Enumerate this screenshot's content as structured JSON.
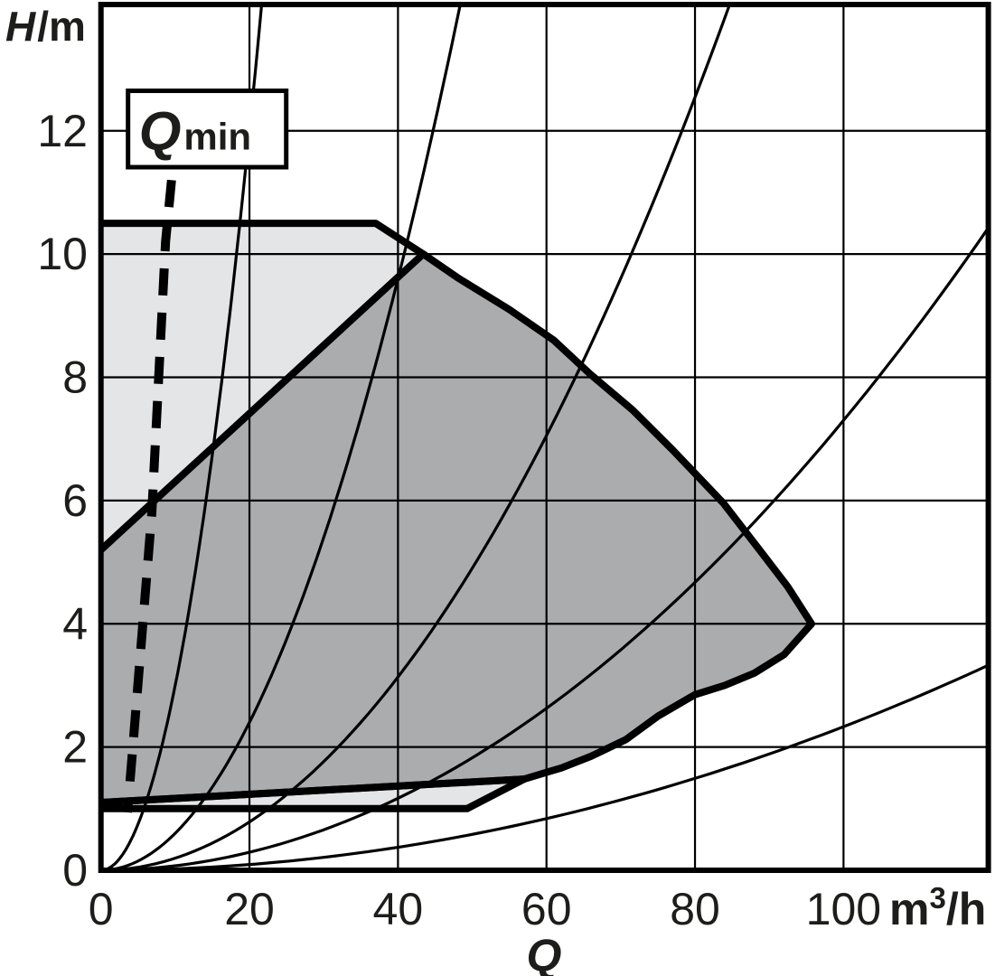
{
  "figure": {
    "y_axis_label_main": "H",
    "y_axis_label_unit": "/m",
    "x_axis_quantity": "Q",
    "x_axis_unit_m": "m",
    "x_axis_unit_sup": "3",
    "x_axis_unit_rest": "/h",
    "annotation_base": "Q",
    "annotation_sub": "min"
  },
  "colors": {
    "light_gray": "#e4e5e6",
    "dark_gray": "#aaacae",
    "line": "#000000",
    "text": "#1d1d1b",
    "background": "#ffffff"
  },
  "chart_data": {
    "type": "area",
    "title": "",
    "xlabel": "Q",
    "x_unit": "m³/h",
    "ylabel": "H/m",
    "x": {
      "ticks": [
        0,
        20,
        40,
        60,
        80,
        100
      ],
      "range": [
        0,
        119.5
      ]
    },
    "y": {
      "ticks": [
        0,
        2,
        4,
        6,
        8,
        10,
        12
      ],
      "range": [
        0,
        14.05
      ]
    },
    "grid": true,
    "regions": [
      {
        "name": "upper-extended-field",
        "fill": "light_gray",
        "points": [
          [
            0,
            5.2
          ],
          [
            0,
            10.5
          ],
          [
            37,
            10.5
          ],
          [
            43.4,
            10.0
          ]
        ],
        "outline": [
          [
            0,
            10.5
          ],
          [
            37,
            10.5
          ],
          [
            43.4,
            10.0
          ],
          [
            0,
            5.2
          ]
        ]
      },
      {
        "name": "main-control-field",
        "fill": "dark_gray",
        "points": [
          [
            0,
            5.2
          ],
          [
            43.4,
            10.0
          ],
          [
            48,
            9.62
          ],
          [
            55,
            9.1
          ],
          [
            61,
            8.6
          ],
          [
            65.9,
            8.05
          ],
          [
            71.6,
            7.47
          ],
          [
            77,
            6.82
          ],
          [
            83.8,
            5.96
          ],
          [
            89,
            5.15
          ],
          [
            92.5,
            4.6
          ],
          [
            95.7,
            4.0
          ],
          [
            92,
            3.5
          ],
          [
            88,
            3.2
          ],
          [
            84,
            3.0
          ],
          [
            80,
            2.85
          ],
          [
            75,
            2.5
          ],
          [
            70.7,
            2.12
          ],
          [
            66,
            1.85
          ],
          [
            62,
            1.66
          ],
          [
            60.6,
            1.61
          ],
          [
            57,
            1.48
          ],
          [
            0,
            1.1
          ]
        ],
        "outline": [
          [
            43.4,
            10.0
          ],
          [
            48,
            9.62
          ],
          [
            55,
            9.1
          ],
          [
            61,
            8.6
          ],
          [
            65.9,
            8.05
          ],
          [
            71.6,
            7.47
          ],
          [
            77,
            6.82
          ],
          [
            83.8,
            5.96
          ],
          [
            89,
            5.15
          ],
          [
            92.5,
            4.6
          ],
          [
            95.7,
            4.0
          ],
          [
            92,
            3.5
          ],
          [
            88,
            3.2
          ],
          [
            84,
            3.0
          ],
          [
            80,
            2.85
          ],
          [
            75,
            2.5
          ],
          [
            70.7,
            2.12
          ],
          [
            66,
            1.85
          ],
          [
            62,
            1.66
          ],
          [
            60.6,
            1.61
          ],
          [
            57,
            1.48
          ],
          [
            0,
            1.1
          ]
        ]
      },
      {
        "name": "lower-extended-field",
        "fill": "light_gray",
        "points": [
          [
            0,
            1.0
          ],
          [
            49.3,
            1.0
          ],
          [
            57,
            1.48
          ],
          [
            0,
            1.1
          ]
        ],
        "outline": [
          [
            0,
            1.0
          ],
          [
            49.3,
            1.0
          ],
          [
            57,
            1.48
          ],
          [
            0,
            1.1
          ]
        ]
      }
    ],
    "system_curves": {
      "description": "thin system/throttle curves H = k * Q^2 through the origin",
      "k_values": [
        0.03,
        0.006,
        0.00196,
        0.00073,
        0.000233
      ]
    },
    "qmin_line": {
      "style": "dashed",
      "points": [
        [
          9.5,
          11.2
        ],
        [
          8.7,
          10.2
        ],
        [
          6.85,
          5.8
        ],
        [
          4.3,
          2.0
        ],
        [
          3.57,
          0.94
        ]
      ]
    },
    "annotation_box": {
      "label": "Qmin",
      "q_range": [
        3.65,
        24.95
      ],
      "h_range": [
        11.41,
        12.65
      ]
    }
  }
}
